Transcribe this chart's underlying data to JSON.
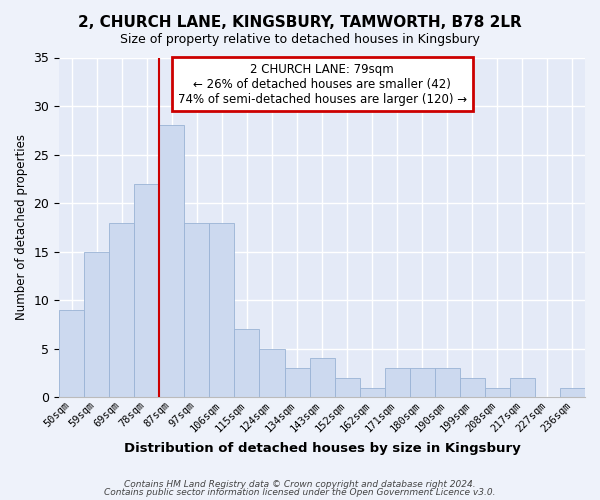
{
  "title": "2, CHURCH LANE, KINGSBURY, TAMWORTH, B78 2LR",
  "subtitle": "Size of property relative to detached houses in Kingsbury",
  "xlabel": "Distribution of detached houses by size in Kingsbury",
  "ylabel": "Number of detached properties",
  "bin_labels": [
    "50sqm",
    "59sqm",
    "69sqm",
    "78sqm",
    "87sqm",
    "97sqm",
    "106sqm",
    "115sqm",
    "124sqm",
    "134sqm",
    "143sqm",
    "152sqm",
    "162sqm",
    "171sqm",
    "180sqm",
    "190sqm",
    "199sqm",
    "208sqm",
    "217sqm",
    "227sqm",
    "236sqm"
  ],
  "bar_heights": [
    9,
    15,
    18,
    22,
    28,
    18,
    18,
    7,
    5,
    3,
    4,
    2,
    1,
    3,
    3,
    3,
    2,
    1,
    2,
    0,
    1
  ],
  "bar_color": "#ccd9ef",
  "bar_edgecolor": "#9ab3d5",
  "vline_x": 4.0,
  "vline_color": "#cc0000",
  "annotation_title": "2 CHURCH LANE: 79sqm",
  "annotation_line1": "← 26% of detached houses are smaller (42)",
  "annotation_line2": "74% of semi-detached houses are larger (120) →",
  "annotation_box_edgecolor": "#cc0000",
  "ylim": [
    0,
    35
  ],
  "yticks": [
    0,
    5,
    10,
    15,
    20,
    25,
    30,
    35
  ],
  "footer1": "Contains HM Land Registry data © Crown copyright and database right 2024.",
  "footer2": "Contains public sector information licensed under the Open Government Licence v3.0.",
  "fig_facecolor": "#eef2fa",
  "plot_facecolor": "#e4eaf7"
}
